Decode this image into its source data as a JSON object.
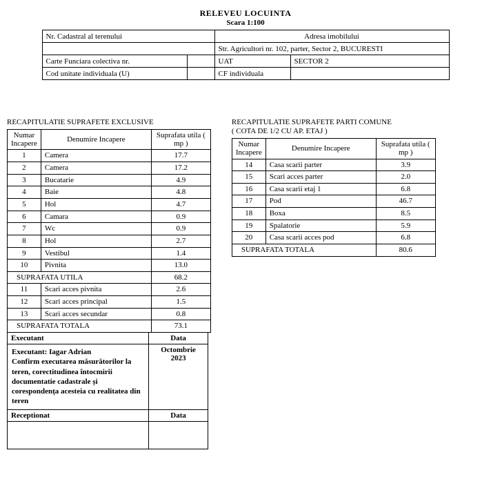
{
  "title": {
    "main": "RELEVEU LOCUINTA",
    "sub": "Scara 1:100"
  },
  "header": {
    "nr_cad_label": "Nr. Cadastral al terenului",
    "adresa_label": "Adresa imobilului",
    "adresa_value": "Str. Agricultori nr. 102, parter, Sector 2, BUCURESTI",
    "cf_colectiva_label": "Carte Funciara colectiva nr.",
    "uat_label": "UAT",
    "uat_value": "SECTOR 2",
    "cod_u_label": "Cod unitate individuala (U)",
    "cf_indiv_label": "CF individuala"
  },
  "exclusive": {
    "title": "RECAPITULATIE SUPRAFETE EXCLUSIVE",
    "col_num": "Numar Incapere",
    "col_name": "Denumire Incapere",
    "col_area": "Suprafata utila ( mp )",
    "rows1": [
      {
        "n": "1",
        "d": "Camera",
        "a": "17.7"
      },
      {
        "n": "2",
        "d": "Camera",
        "a": "17.2"
      },
      {
        "n": "3",
        "d": "Bucatarie",
        "a": "4.9"
      },
      {
        "n": "4",
        "d": "Baie",
        "a": "4.8"
      },
      {
        "n": "5",
        "d": "Hol",
        "a": "4.7"
      },
      {
        "n": "6",
        "d": "Camara",
        "a": "0.9"
      },
      {
        "n": "7",
        "d": "Wc",
        "a": "0.9"
      },
      {
        "n": "8",
        "d": "Hol",
        "a": "2.7"
      },
      {
        "n": "9",
        "d": "Vestibul",
        "a": "1.4"
      },
      {
        "n": "10",
        "d": "Pivnita",
        "a": "13.0"
      }
    ],
    "utila_label": "SUPRAFATA UTILA",
    "utila_value": "68.2",
    "rows2": [
      {
        "n": "11",
        "d": "Scari acces pivnita",
        "a": "2.6"
      },
      {
        "n": "12",
        "d": "Scari acces principal",
        "a": "1.5"
      },
      {
        "n": "13",
        "d": "Scari acces secundar",
        "a": "0.8"
      }
    ],
    "totala_label": "SUPRAFATA TOTALA",
    "totala_value": "73.1"
  },
  "exec": {
    "executant_hdr": "Executant",
    "data_hdr": "Data",
    "text": "Executant: Iagar Adrian\nConfirm executarea măsurătorilor la teren, corectitudinea întocmirii documentatie cadastrale și corespondența acesteia cu realitatea din teren",
    "date_value": "Octombrie 2023",
    "receptionat_hdr": "Receptionat"
  },
  "comune": {
    "title1": "RECAPITULATIE SUPRAFETE PARTI COMUNE",
    "title2": "( COTA DE 1/2 CU AP. ETAJ )",
    "col_num": "Numar Incapere",
    "col_name": "Denumire Incapere",
    "col_area": "Suprafata utila ( mp )",
    "rows": [
      {
        "n": "14",
        "d": "Casa scarii parter",
        "a": "3.9"
      },
      {
        "n": "15",
        "d": "Scari acces parter",
        "a": "2.0"
      },
      {
        "n": "16",
        "d": "Casa scarii etaj 1",
        "a": "6.8"
      },
      {
        "n": "17",
        "d": "Pod",
        "a": "46.7"
      },
      {
        "n": "18",
        "d": "Boxa",
        "a": "8.5"
      },
      {
        "n": "19",
        "d": "Spalatorie",
        "a": "5.9"
      },
      {
        "n": "20",
        "d": "Casa scarii acces pod",
        "a": "6.8"
      }
    ],
    "totala_label": "SUPRAFATA TOTALA",
    "totala_value": "80.6"
  }
}
